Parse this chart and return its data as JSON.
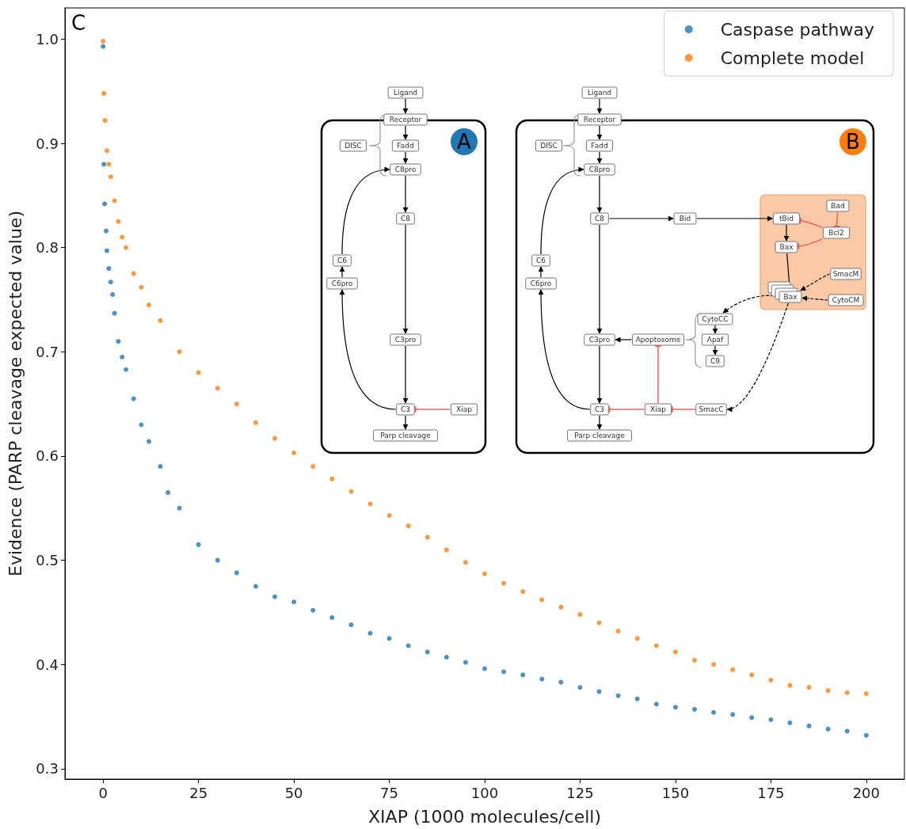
{
  "chart_data": {
    "type": "scatter",
    "xlabel": "XIAP (1000 molecules/cell)",
    "ylabel": "Evidence (PARP cleavage expected value)",
    "xlim": [
      -10,
      210
    ],
    "xticks": [
      0,
      25,
      50,
      75,
      100,
      125,
      150,
      175,
      200
    ],
    "ylim": [
      0.29,
      1.03
    ],
    "yticks": [
      {
        "value": 0.3,
        "label": "0.3"
      },
      {
        "value": 0.4,
        "label": "0.4"
      },
      {
        "value": 0.5,
        "label": "0.5"
      },
      {
        "value": 0.6,
        "label": "0.6"
      },
      {
        "value": 0.7,
        "label": "0.7"
      },
      {
        "value": 0.8,
        "label": "0.8"
      },
      {
        "value": 0.9,
        "label": "0.9"
      },
      {
        "value": 1,
        "label": "1.0"
      }
    ],
    "grid": false,
    "legend": "top right",
    "marker": "circle",
    "annotations": [
      "C",
      "A",
      "B",
      "Ligand",
      "Receptor",
      "Fadd",
      "C8pro",
      "DISC",
      "C8",
      "C3pro",
      "C3",
      "Parp cleavage",
      "Xiap",
      "C6",
      "C6pro",
      "Ligand",
      "Receptor",
      "Fadd",
      "C8pro",
      "DISC",
      "C8",
      "Bid",
      "C6",
      "C6pro",
      "C3pro",
      "C3",
      "Parp cleavage",
      "Apoptosome",
      "Xiap",
      "SmacC",
      "CytoCC",
      "Apaf",
      "C9",
      "tBid",
      "Bax",
      "Bcl2",
      "Bad",
      "Bax",
      "SmacM",
      "CytoCM"
    ],
    "series": [
      {
        "name": "Caspase pathway",
        "color": "#1f77b4",
        "x": [
          0,
          0.2,
          0.4,
          0.8,
          1,
          1.5,
          2,
          2.5,
          3,
          4,
          5,
          6,
          8,
          10,
          12,
          15,
          17,
          20,
          25,
          30,
          35,
          40,
          45,
          50,
          55,
          60,
          65,
          70,
          75,
          80,
          85,
          90,
          95,
          100,
          105,
          110,
          115,
          120,
          125,
          130,
          135,
          140,
          145,
          150,
          155,
          160,
          165,
          170,
          175,
          180,
          185,
          190,
          195,
          200
        ],
        "values": [
          0.993,
          0.88,
          0.842,
          0.816,
          0.797,
          0.78,
          0.767,
          0.755,
          0.737,
          0.71,
          0.695,
          0.683,
          0.655,
          0.63,
          0.614,
          0.59,
          0.565,
          0.55,
          0.515,
          0.5,
          0.488,
          0.475,
          0.465,
          0.46,
          0.452,
          0.445,
          0.438,
          0.43,
          0.425,
          0.418,
          0.412,
          0.407,
          0.402,
          0.396,
          0.393,
          0.39,
          0.386,
          0.383,
          0.378,
          0.374,
          0.37,
          0.367,
          0.362,
          0.359,
          0.357,
          0.354,
          0.352,
          0.349,
          0.347,
          0.344,
          0.341,
          0.338,
          0.336,
          0.332
        ]
      },
      {
        "name": "Complete model",
        "color": "#ff7f0e",
        "x": [
          0,
          0.2,
          0.5,
          1,
          1.5,
          2,
          3,
          4,
          5,
          6,
          8,
          10,
          12,
          15,
          20,
          25,
          30,
          35,
          40,
          45,
          50,
          55,
          60,
          65,
          70,
          75,
          80,
          85,
          90,
          95,
          100,
          105,
          110,
          115,
          120,
          125,
          130,
          135,
          140,
          145,
          150,
          155,
          160,
          165,
          170,
          175,
          180,
          185,
          190,
          195,
          200
        ],
        "values": [
          0.998,
          0.948,
          0.922,
          0.893,
          0.88,
          0.868,
          0.845,
          0.825,
          0.81,
          0.8,
          0.775,
          0.762,
          0.745,
          0.73,
          0.7,
          0.68,
          0.665,
          0.65,
          0.632,
          0.617,
          0.603,
          0.59,
          0.578,
          0.566,
          0.554,
          0.543,
          0.533,
          0.522,
          0.51,
          0.498,
          0.487,
          0.478,
          0.47,
          0.462,
          0.455,
          0.448,
          0.44,
          0.432,
          0.425,
          0.418,
          0.412,
          0.404,
          0.4,
          0.395,
          0.39,
          0.385,
          0.38,
          0.378,
          0.375,
          0.373,
          0.372
        ]
      }
    ]
  }
}
